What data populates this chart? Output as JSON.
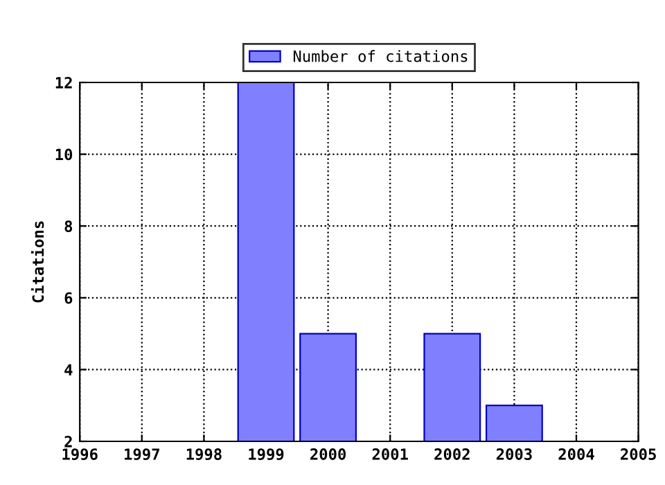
{
  "chart_data": {
    "type": "bar",
    "ylabel": "Citations",
    "x": [
      1999,
      2000,
      2002,
      2003
    ],
    "series": [
      {
        "name": "Number of citations",
        "color": "#8080ff",
        "values": [
          12,
          5,
          5,
          3
        ]
      }
    ],
    "xlim": [
      1996,
      2005
    ],
    "xticks": [
      1996,
      1997,
      1998,
      1999,
      2000,
      2001,
      2002,
      2003,
      2004,
      2005
    ],
    "ylim": [
      2,
      12
    ],
    "yticks": [
      2,
      4,
      6,
      8,
      10,
      12
    ],
    "grid": true,
    "legend": "top"
  }
}
